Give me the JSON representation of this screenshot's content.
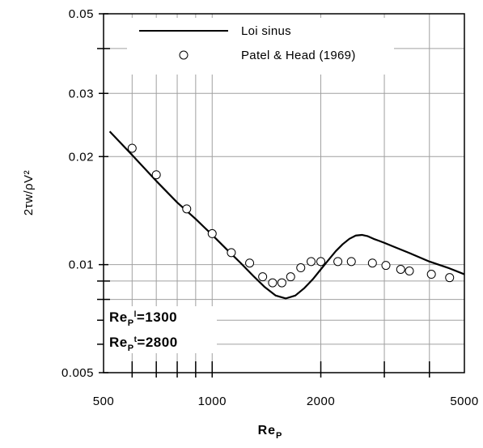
{
  "chart_data": {
    "type": "line",
    "title": "",
    "xlabel": "Re",
    "xlabel_sub": "P",
    "ylabel": "2τw/ρV²",
    "xscale": "log",
    "yscale": "log",
    "xlim": [
      500,
      5000
    ],
    "ylim": [
      0.005,
      0.05
    ],
    "x_ticks": [
      {
        "value": 500,
        "label": "500"
      },
      {
        "value": 1000,
        "label": "1000"
      },
      {
        "value": 2000,
        "label": "2000"
      },
      {
        "value": 5000,
        "label": "5000"
      }
    ],
    "y_ticks": [
      {
        "value": 0.005,
        "label": "0.005"
      },
      {
        "value": 0.01,
        "label": "0.01"
      },
      {
        "value": 0.02,
        "label": "0.02"
      },
      {
        "value": 0.03,
        "label": "0.03"
      },
      {
        "value": 0.05,
        "label": "0.05"
      }
    ],
    "grid": true,
    "legend_position": "top",
    "series": [
      {
        "name": "Loi sinus",
        "kind": "line",
        "color": "#000000",
        "x": [
          520,
          600,
          700,
          800,
          900,
          1000,
          1100,
          1200,
          1300,
          1400,
          1500,
          1600,
          1700,
          1800,
          1900,
          2000,
          2100,
          2200,
          2300,
          2400,
          2500,
          2600,
          2700,
          2800,
          2900,
          3000,
          3200,
          3500,
          4000,
          4500,
          5000
        ],
        "y": [
          0.0235,
          0.0202,
          0.0171,
          0.0149,
          0.0134,
          0.0121,
          0.011,
          0.0101,
          0.0093,
          0.00865,
          0.0082,
          0.00805,
          0.0082,
          0.0086,
          0.0091,
          0.0097,
          0.0103,
          0.0109,
          0.0114,
          0.0118,
          0.01205,
          0.0121,
          0.012,
          0.0118,
          0.01165,
          0.0115,
          0.0112,
          0.0108,
          0.0102,
          0.0098,
          0.0094
        ]
      },
      {
        "name": "Patel & Head (1969)",
        "kind": "scatter",
        "color": "#000000",
        "x": [
          600,
          700,
          850,
          1000,
          1130,
          1270,
          1380,
          1470,
          1560,
          1650,
          1760,
          1880,
          2000,
          2230,
          2430,
          2780,
          3030,
          3330,
          3520,
          4050,
          4550
        ],
        "y": [
          0.0211,
          0.0178,
          0.0143,
          0.0122,
          0.0108,
          0.0101,
          0.00925,
          0.0089,
          0.0089,
          0.00925,
          0.0098,
          0.0102,
          0.0102,
          0.0102,
          0.0102,
          0.0101,
          0.00995,
          0.0097,
          0.0096,
          0.0094,
          0.0092
        ]
      }
    ],
    "annotations": [
      {
        "base": "Re",
        "sub": "P",
        "sup": "l",
        "value": "=1300"
      },
      {
        "base": "Re",
        "sub": "P",
        "sup": "t",
        "value": "=2800"
      }
    ]
  }
}
